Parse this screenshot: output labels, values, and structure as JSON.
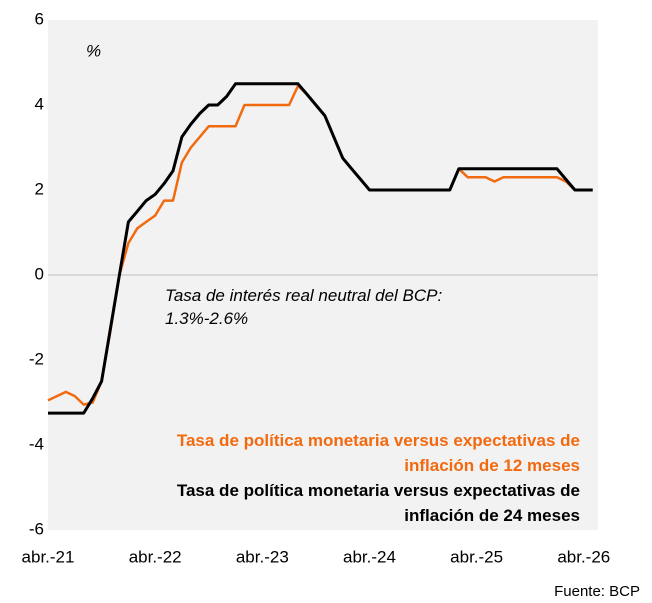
{
  "chart_data": {
    "type": "line",
    "unit_label": "%",
    "annotation": "Tasa de interés real neutral del BCP: 1.3%-2.6%",
    "source": "Fuente: BCP",
    "categories": [
      "abr.-21",
      null,
      null,
      null,
      null,
      null,
      null,
      null,
      null,
      null,
      null,
      null,
      "abr.-22",
      null,
      null,
      null,
      null,
      null,
      null,
      null,
      null,
      null,
      null,
      null,
      "abr.-23",
      null,
      null,
      null,
      null,
      null,
      null,
      null,
      null,
      null,
      null,
      null,
      "abr.-24",
      null,
      null,
      null,
      null,
      null,
      null,
      null,
      null,
      null,
      null,
      null,
      "abr.-25",
      null,
      null,
      null,
      null,
      null,
      null,
      null,
      null,
      null,
      null,
      null,
      "abr.-26",
      null
    ],
    "series": [
      {
        "name": "Tasa de política monetaria versus expectativas de inflación de 12 meses",
        "color": "#f26a10",
        "values": [
          -2.95,
          -2.85,
          -2.75,
          -2.85,
          -3.05,
          -3.0,
          -2.5,
          -1.3,
          0.0,
          0.75,
          1.1,
          1.25,
          1.4,
          1.75,
          1.75,
          2.65,
          3.0,
          3.25,
          3.5,
          3.5,
          3.5,
          3.5,
          4.0,
          4.0,
          4.0,
          4.0,
          4.0,
          4.0,
          4.45,
          4.25,
          4.0,
          3.75,
          3.25,
          2.75,
          2.5,
          2.25,
          2.0,
          2.0,
          2.0,
          2.0,
          2.0,
          2.0,
          2.0,
          2.0,
          2.0,
          2.0,
          2.5,
          2.3,
          2.3,
          2.3,
          2.2,
          2.3,
          2.3,
          2.3,
          2.3,
          2.3,
          2.3,
          2.3,
          2.2,
          2.0,
          2.0,
          2.0
        ]
      },
      {
        "name": "Tasa de política monetaria versus expectativas de inflación de 24 meses",
        "color": "#000000",
        "values": [
          -3.25,
          -3.25,
          -3.25,
          -3.25,
          -3.25,
          -2.9,
          -2.5,
          -1.25,
          0.0,
          1.25,
          1.5,
          1.75,
          1.9,
          2.15,
          2.45,
          3.25,
          3.55,
          3.8,
          4.0,
          4.0,
          4.2,
          4.5,
          4.5,
          4.5,
          4.5,
          4.5,
          4.5,
          4.5,
          4.5,
          4.25,
          4.0,
          3.75,
          3.25,
          2.75,
          2.5,
          2.25,
          2.0,
          2.0,
          2.0,
          2.0,
          2.0,
          2.0,
          2.0,
          2.0,
          2.0,
          2.0,
          2.5,
          2.5,
          2.5,
          2.5,
          2.5,
          2.5,
          2.5,
          2.5,
          2.5,
          2.5,
          2.5,
          2.5,
          2.25,
          2.0,
          2.0,
          2.0
        ]
      }
    ],
    "ylim": [
      -6,
      6
    ],
    "yticks": [
      -6,
      -4,
      -2,
      0,
      2,
      4,
      6
    ],
    "background": "#f2f2f2",
    "zero_line": true
  }
}
